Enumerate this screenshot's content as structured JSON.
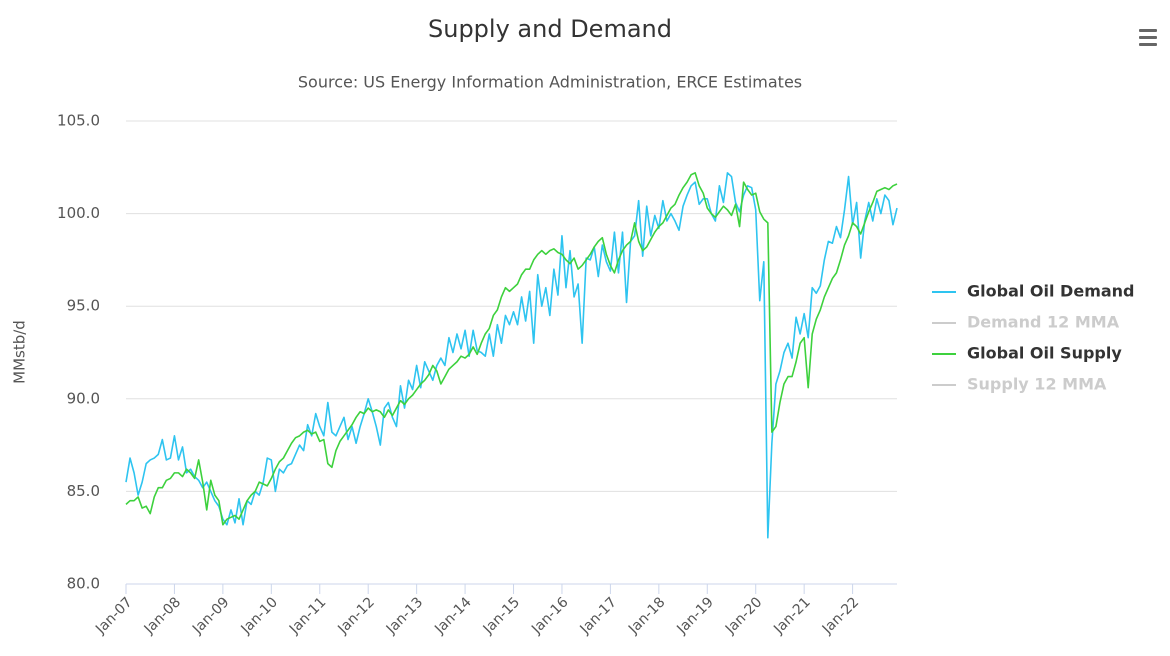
{
  "chart_data": {
    "type": "line",
    "title": "Supply and Demand",
    "subtitle": "Source: US Energy Information Administration, ERCE Estimates",
    "y_label": "MMstb/d",
    "categories": [
      "Jan-07",
      null,
      null,
      null,
      null,
      null,
      null,
      null,
      null,
      null,
      null,
      null,
      "Jan-08",
      null,
      null,
      null,
      null,
      null,
      null,
      null,
      null,
      null,
      null,
      null,
      "Jan-09",
      null,
      null,
      null,
      null,
      null,
      null,
      null,
      null,
      null,
      null,
      null,
      "Jan-10",
      null,
      null,
      null,
      null,
      null,
      null,
      null,
      null,
      null,
      null,
      null,
      "Jan-11",
      null,
      null,
      null,
      null,
      null,
      null,
      null,
      null,
      null,
      null,
      null,
      "Jan-12",
      null,
      null,
      null,
      null,
      null,
      null,
      null,
      null,
      null,
      null,
      null,
      "Jan-13",
      null,
      null,
      null,
      null,
      null,
      null,
      null,
      null,
      null,
      null,
      null,
      "Jan-14",
      null,
      null,
      null,
      null,
      null,
      null,
      null,
      null,
      null,
      null,
      null,
      "Jan-15",
      null,
      null,
      null,
      null,
      null,
      null,
      null,
      null,
      null,
      null,
      null,
      "Jan-16",
      null,
      null,
      null,
      null,
      null,
      null,
      null,
      null,
      null,
      null,
      null,
      "Jan-17",
      null,
      null,
      null,
      null,
      null,
      null,
      null,
      null,
      null,
      null,
      null,
      "Jan-18",
      null,
      null,
      null,
      null,
      null,
      null,
      null,
      null,
      null,
      null,
      null,
      "Jan-19",
      null,
      null,
      null,
      null,
      null,
      null,
      null,
      null,
      null,
      null,
      null,
      "Jan-20",
      null,
      null,
      null,
      null,
      null,
      null,
      null,
      null,
      null,
      null,
      null,
      "Jan-21",
      null,
      null,
      null,
      null,
      null,
      null,
      null,
      null,
      null,
      null,
      null,
      "Jan-22",
      null,
      null,
      null,
      null,
      null,
      null,
      null,
      null,
      null,
      null,
      null
    ],
    "series": [
      {
        "name": "Global Oil Demand",
        "color": "#2ec4f0",
        "visible": true,
        "values": [
          85.5,
          86.8,
          86,
          84.8,
          85.5,
          86.5,
          86.7,
          86.8,
          87,
          87.8,
          86.7,
          86.8,
          88,
          86.7,
          87.4,
          86,
          86.2,
          85.8,
          85.6,
          85.2,
          85.5,
          85,
          84.5,
          84.2,
          83.5,
          83.2,
          84,
          83.3,
          84.6,
          83.2,
          84.5,
          84.3,
          85,
          84.8,
          85.5,
          86.8,
          86.7,
          85,
          86.2,
          86,
          86.4,
          86.5,
          87,
          87.5,
          87.2,
          88.6,
          88,
          89.2,
          88.5,
          88,
          89.8,
          88.2,
          88,
          88.5,
          89,
          87.8,
          88.5,
          87.6,
          88.5,
          89.2,
          90,
          89.3,
          88.5,
          87.5,
          89.5,
          89.8,
          89,
          88.5,
          90.7,
          89.5,
          91,
          90.5,
          91.8,
          90.6,
          92,
          91.5,
          91,
          91.8,
          92.2,
          91.8,
          93.3,
          92.5,
          93.5,
          92.7,
          93.7,
          92.3,
          93.7,
          92.6,
          92.5,
          92.3,
          93.5,
          92.3,
          94,
          93,
          94.5,
          94,
          94.7,
          94,
          95.5,
          94.2,
          95.8,
          93,
          96.7,
          95,
          96,
          94.5,
          97,
          95.6,
          98.8,
          96,
          98,
          95.5,
          96.2,
          93,
          97.6,
          97.5,
          98.2,
          96.6,
          98.3,
          97.4,
          96.9,
          99,
          96.8,
          99,
          95.2,
          98.5,
          98.8,
          100.7,
          97.7,
          100.4,
          98.8,
          99.9,
          99.2,
          100.7,
          99.6,
          100,
          99.6,
          99.1,
          100.4,
          101,
          101.5,
          101.7,
          100.5,
          100.8,
          100.8,
          100,
          99.6,
          101.5,
          100.6,
          102.2,
          102,
          100.6,
          100.1,
          101,
          101.5,
          101.4,
          100.2,
          95.3,
          97.4,
          82.5,
          87.6,
          90.8,
          91.5,
          92.5,
          93,
          92.2,
          94.4,
          93.5,
          94.6,
          93.3,
          96,
          95.7,
          96.1,
          97.5,
          98.5,
          98.4,
          99.3,
          98.7,
          100.2,
          102,
          99.4,
          100.6,
          97.6,
          99.6,
          100.6,
          99.6,
          100.8,
          100,
          101,
          100.7,
          99.4,
          100.3
        ]
      },
      {
        "name": "Demand 12 MMA",
        "color": "#cccccc",
        "visible": false
      },
      {
        "name": "Global Oil Supply",
        "color": "#3dd13d",
        "visible": true,
        "values": [
          84.3,
          84.5,
          84.5,
          84.7,
          84.1,
          84.2,
          83.8,
          84.7,
          85.2,
          85.2,
          85.6,
          85.7,
          86,
          86,
          85.8,
          86.2,
          86,
          85.7,
          86.7,
          85.5,
          84,
          85.6,
          84.8,
          84.5,
          83.2,
          83.5,
          83.6,
          83.7,
          83.5,
          84,
          84.5,
          84.8,
          85,
          85.5,
          85.4,
          85.3,
          85.7,
          86.2,
          86.6,
          86.8,
          87.2,
          87.6,
          87.9,
          88,
          88.2,
          88.3,
          88.1,
          88.2,
          87.7,
          87.8,
          86.5,
          86.3,
          87.2,
          87.7,
          88,
          88.3,
          88.6,
          89,
          89.3,
          89.2,
          89.5,
          89.3,
          89.4,
          89.3,
          89,
          89.4,
          89.1,
          89.5,
          89.9,
          89.7,
          90,
          90.2,
          90.5,
          90.8,
          91,
          91.3,
          91.8,
          91.5,
          90.8,
          91.2,
          91.6,
          91.8,
          92,
          92.3,
          92.2,
          92.4,
          92.8,
          92.4,
          93,
          93.5,
          93.8,
          94.5,
          94.8,
          95.5,
          96,
          95.8,
          96,
          96.2,
          96.7,
          97,
          97,
          97.5,
          97.8,
          98,
          97.8,
          98,
          98.1,
          97.9,
          97.8,
          97.5,
          97.3,
          97.6,
          97,
          97.2,
          97.5,
          97.8,
          98.2,
          98.5,
          98.7,
          97.8,
          97.2,
          96.8,
          97.5,
          98,
          98.3,
          98.5,
          99.5,
          98.5,
          98,
          98.2,
          98.6,
          99,
          99.3,
          99.5,
          99.9,
          100.3,
          100.5,
          101,
          101.4,
          101.7,
          102.1,
          102.2,
          101.5,
          101.1,
          100.3,
          100,
          99.8,
          100.1,
          100.4,
          100.2,
          99.9,
          100.5,
          99.3,
          101.7,
          101.3,
          101,
          101.1,
          100.1,
          99.7,
          99.5,
          88.2,
          88.5,
          89.8,
          90.8,
          91.2,
          91.2,
          92,
          93,
          93.3,
          90.6,
          93.5,
          94.3,
          94.8,
          95.5,
          96,
          96.5,
          96.8,
          97.5,
          98.3,
          98.8,
          99.5,
          99.3,
          98.9,
          99.5,
          100.1,
          100.6,
          101.2,
          101.3,
          101.4,
          101.3,
          101.5,
          101.6
        ]
      },
      {
        "name": "Supply 12 MMA",
        "color": "#cccccc",
        "visible": false
      }
    ],
    "ylim": [
      80,
      105
    ],
    "yticks": [
      {
        "value": 80,
        "label": "80.0"
      },
      {
        "value": 85,
        "label": "85.0"
      },
      {
        "value": 90,
        "label": "90.0"
      },
      {
        "value": 95,
        "label": "95.0"
      },
      {
        "value": 100,
        "label": "100.0"
      },
      {
        "value": 105,
        "label": "105.0"
      }
    ],
    "grid": true,
    "legend": "right"
  }
}
